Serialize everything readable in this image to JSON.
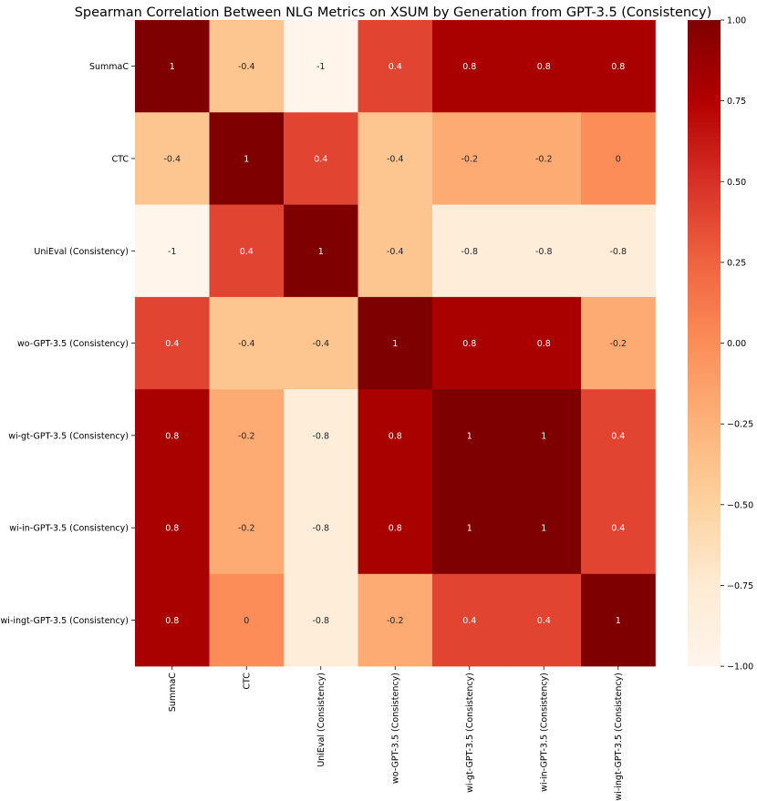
{
  "chart_data": {
    "type": "heatmap",
    "title": "Spearman Correlation Between NLG Metrics on XSUM by Generation from GPT-3.5 (Consistency)",
    "row_labels": [
      "SummaC",
      "CTC",
      "UniEval (Consistency)",
      "wo-GPT-3.5 (Consistency)",
      "wi-gt-GPT-3.5 (Consistency)",
      "wi-in-GPT-3.5 (Consistency)",
      "wi-ingt-GPT-3.5 (Consistency)"
    ],
    "col_labels": [
      "SummaC",
      "CTC",
      "UniEval (Consistency)",
      "wo-GPT-3.5 (Consistency)",
      "wi-gt-GPT-3.5 (Consistency)",
      "wi-in-GPT-3.5 (Consistency)",
      "wi-ingt-GPT-3.5 (Consistency)"
    ],
    "values": [
      [
        1,
        -0.4,
        -1,
        0.4,
        0.8,
        0.8,
        0.8
      ],
      [
        -0.4,
        1,
        0.4,
        -0.4,
        -0.2,
        -0.2,
        0
      ],
      [
        -1,
        0.4,
        1,
        -0.4,
        -0.8,
        -0.8,
        -0.8
      ],
      [
        0.4,
        -0.4,
        -0.4,
        1,
        0.8,
        0.8,
        -0.2
      ],
      [
        0.8,
        -0.2,
        -0.8,
        0.8,
        1,
        1,
        0.4
      ],
      [
        0.8,
        -0.2,
        -0.8,
        0.8,
        1,
        1,
        0.4
      ],
      [
        0.8,
        0,
        -0.8,
        -0.2,
        0.4,
        0.4,
        1
      ]
    ],
    "cell_labels": [
      [
        "1",
        "-0.4",
        "-1",
        "0.4",
        "0.8",
        "0.8",
        "0.8"
      ],
      [
        "-0.4",
        "1",
        "0.4",
        "-0.4",
        "-0.2",
        "-0.2",
        "0"
      ],
      [
        "-1",
        "0.4",
        "1",
        "-0.4",
        "-0.8",
        "-0.8",
        "-0.8"
      ],
      [
        "0.4",
        "-0.4",
        "-0.4",
        "1",
        "0.8",
        "0.8",
        "-0.2"
      ],
      [
        "0.8",
        "-0.2",
        "-0.8",
        "0.8",
        "1",
        "1",
        "0.4"
      ],
      [
        "0.8",
        "-0.2",
        "-0.8",
        "0.8",
        "1",
        "1",
        "0.4"
      ],
      [
        "0.8",
        "0",
        "-0.8",
        "-0.2",
        "0.4",
        "0.4",
        "1"
      ]
    ],
    "colormap": "OrRd-like",
    "color_stops": [
      {
        "value": -1.0,
        "color": "#fff5eb"
      },
      {
        "value": -0.75,
        "color": "#feebd3"
      },
      {
        "value": -0.5,
        "color": "#fdd29e"
      },
      {
        "value": -0.25,
        "color": "#fdb27a"
      },
      {
        "value": 0.0,
        "color": "#fc8d59"
      },
      {
        "value": 0.25,
        "color": "#f06340"
      },
      {
        "value": 0.5,
        "color": "#d73027"
      },
      {
        "value": 0.75,
        "color": "#b30000"
      },
      {
        "value": 1.0,
        "color": "#7f0000"
      }
    ],
    "colorbar": {
      "vmin": -1.0,
      "vmax": 1.0,
      "ticks": [
        1.0,
        0.75,
        0.5,
        0.25,
        0.0,
        -0.25,
        -0.5,
        -0.75,
        -1.0
      ],
      "tick_labels": [
        "1.00",
        "0.75",
        "0.50",
        "0.25",
        "0.00",
        "−0.25",
        "−0.50",
        "−0.75",
        "−1.00"
      ]
    }
  }
}
